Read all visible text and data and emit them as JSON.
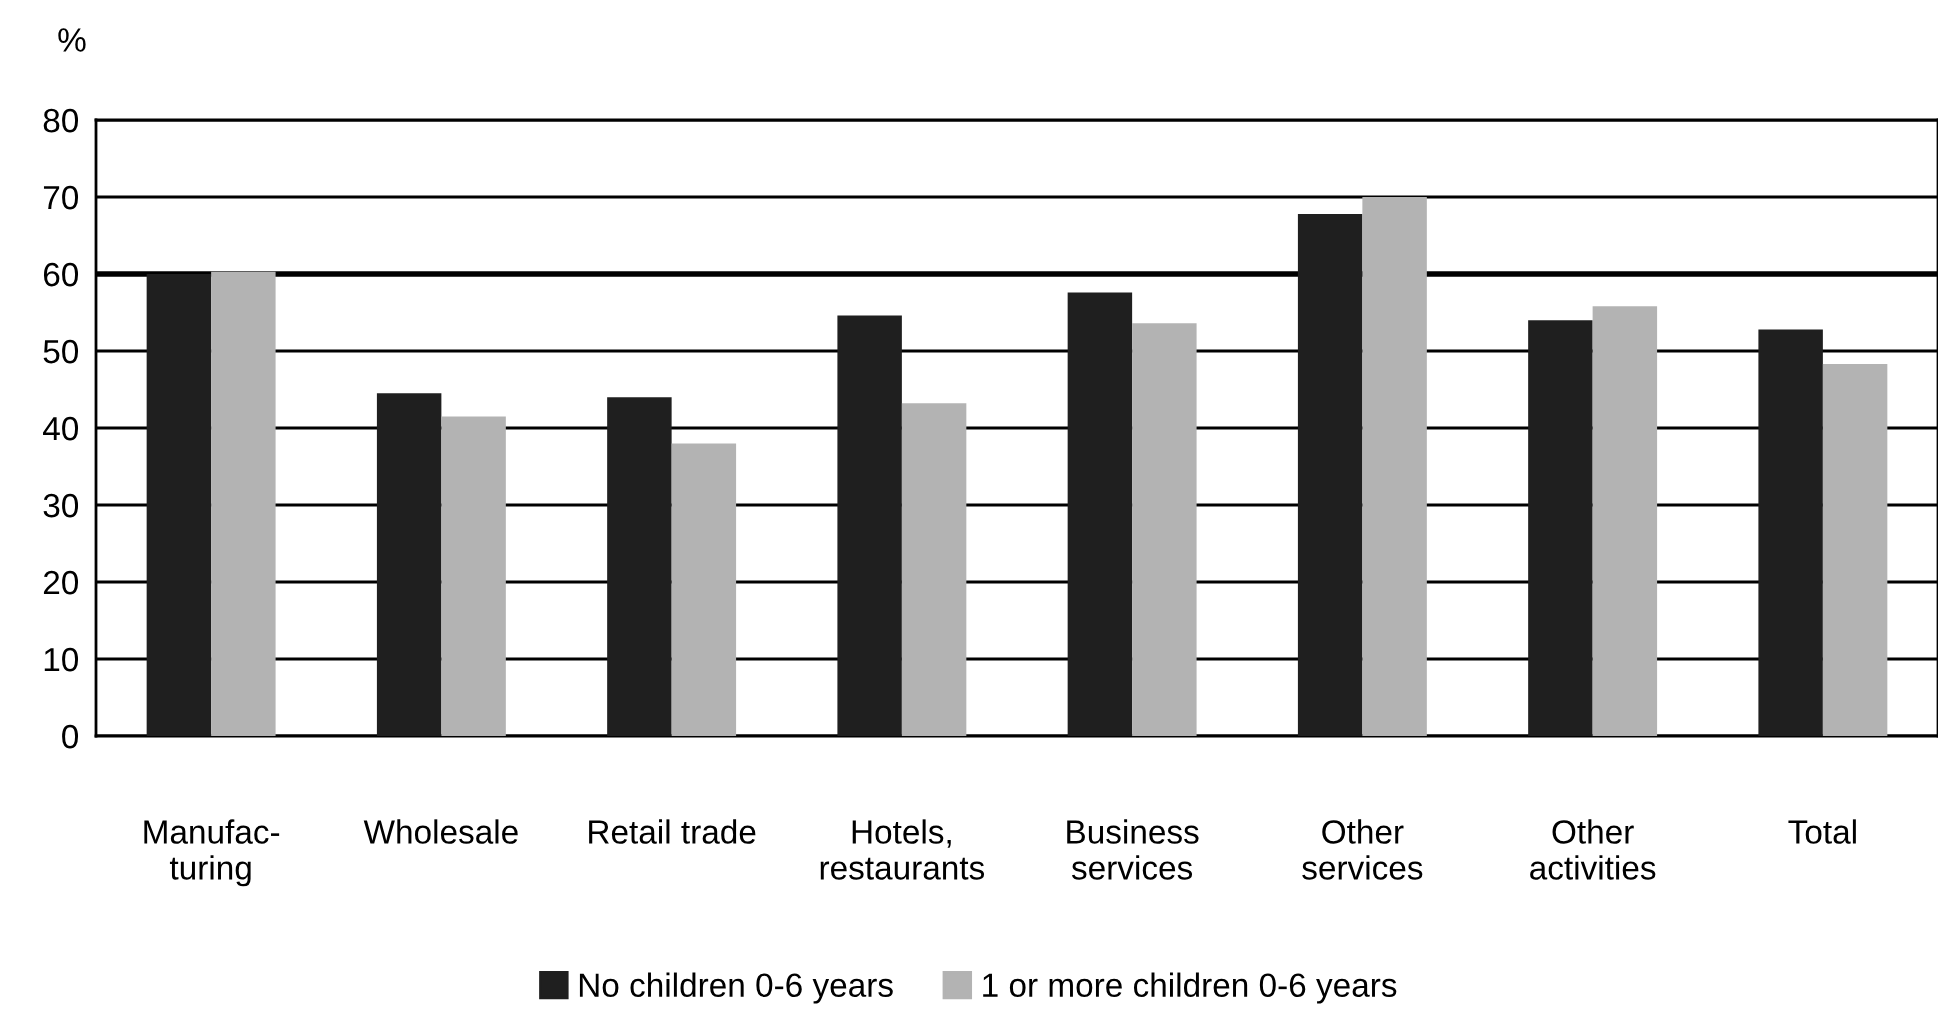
{
  "chart_data": {
    "type": "bar",
    "ylabel": "%",
    "categories": [
      "Manufac-\nturing",
      "Wholesale",
      "Retail trade",
      "Hotels,\nrestaurants",
      "Business\nservices",
      "Other\nservices",
      "Other\nactivities",
      "Total"
    ],
    "series": [
      {
        "name": "No children 0-6 years",
        "color": "#1f1f1f",
        "values": [
          60,
          44.5,
          44,
          54.6,
          57.6,
          67.8,
          54,
          52.8
        ]
      },
      {
        "name": "1 or more children 0-6 years",
        "color": "#b3b3b3",
        "values": [
          60.3,
          41.5,
          38,
          43.2,
          53.6,
          70,
          55.8,
          48.3
        ]
      }
    ],
    "ylim": [
      0,
      80
    ],
    "yticks": [
      0,
      10,
      20,
      30,
      40,
      50,
      60,
      70,
      80
    ],
    "grid": "y",
    "legend": "bottom",
    "ref_lines": [
      {
        "axis": "y",
        "value": 60,
        "color": "#000000"
      }
    ]
  }
}
